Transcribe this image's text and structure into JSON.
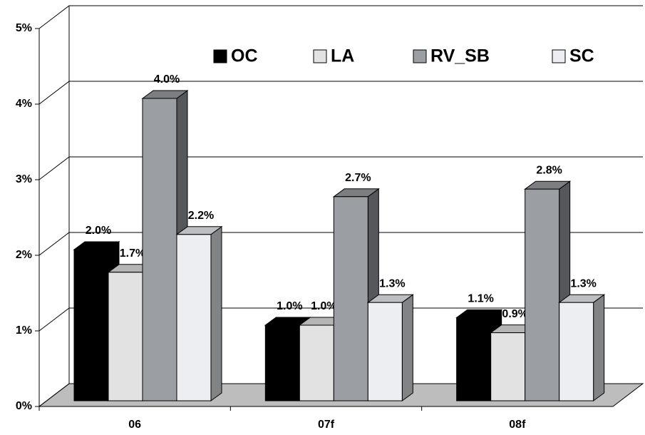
{
  "chart_data": {
    "type": "bar3d",
    "categories": [
      "06",
      "07f",
      "08f"
    ],
    "series": [
      {
        "name": "OC",
        "color": "#000000",
        "values": [
          2.0,
          1.0,
          1.1
        ],
        "value_labels": [
          "2.0%",
          "1.0%",
          "1.1%"
        ]
      },
      {
        "name": "LA",
        "color": "#e2e2e2",
        "values": [
          1.7,
          1.0,
          0.9
        ],
        "value_labels": [
          "1.7%",
          "1.0%",
          "0.9%"
        ]
      },
      {
        "name": "RV_SB",
        "color": "#9b9ea3",
        "values": [
          4.0,
          2.7,
          2.8
        ],
        "value_labels": [
          "4.0%",
          "2.7%",
          "2.8%"
        ]
      },
      {
        "name": "SC",
        "color": "#eceef2",
        "values": [
          2.2,
          1.3,
          1.3
        ],
        "value_labels": [
          "2.2%",
          "1.3%",
          "1.3%"
        ]
      }
    ],
    "ylim": [
      0,
      5
    ],
    "yticks": [
      {
        "value": 0,
        "label": "0%"
      },
      {
        "value": 1,
        "label": "1%"
      },
      {
        "value": 2,
        "label": "2%"
      },
      {
        "value": 3,
        "label": "3%"
      },
      {
        "value": 4,
        "label": "4%"
      },
      {
        "value": 5,
        "label": "5%"
      }
    ],
    "grid": true
  }
}
